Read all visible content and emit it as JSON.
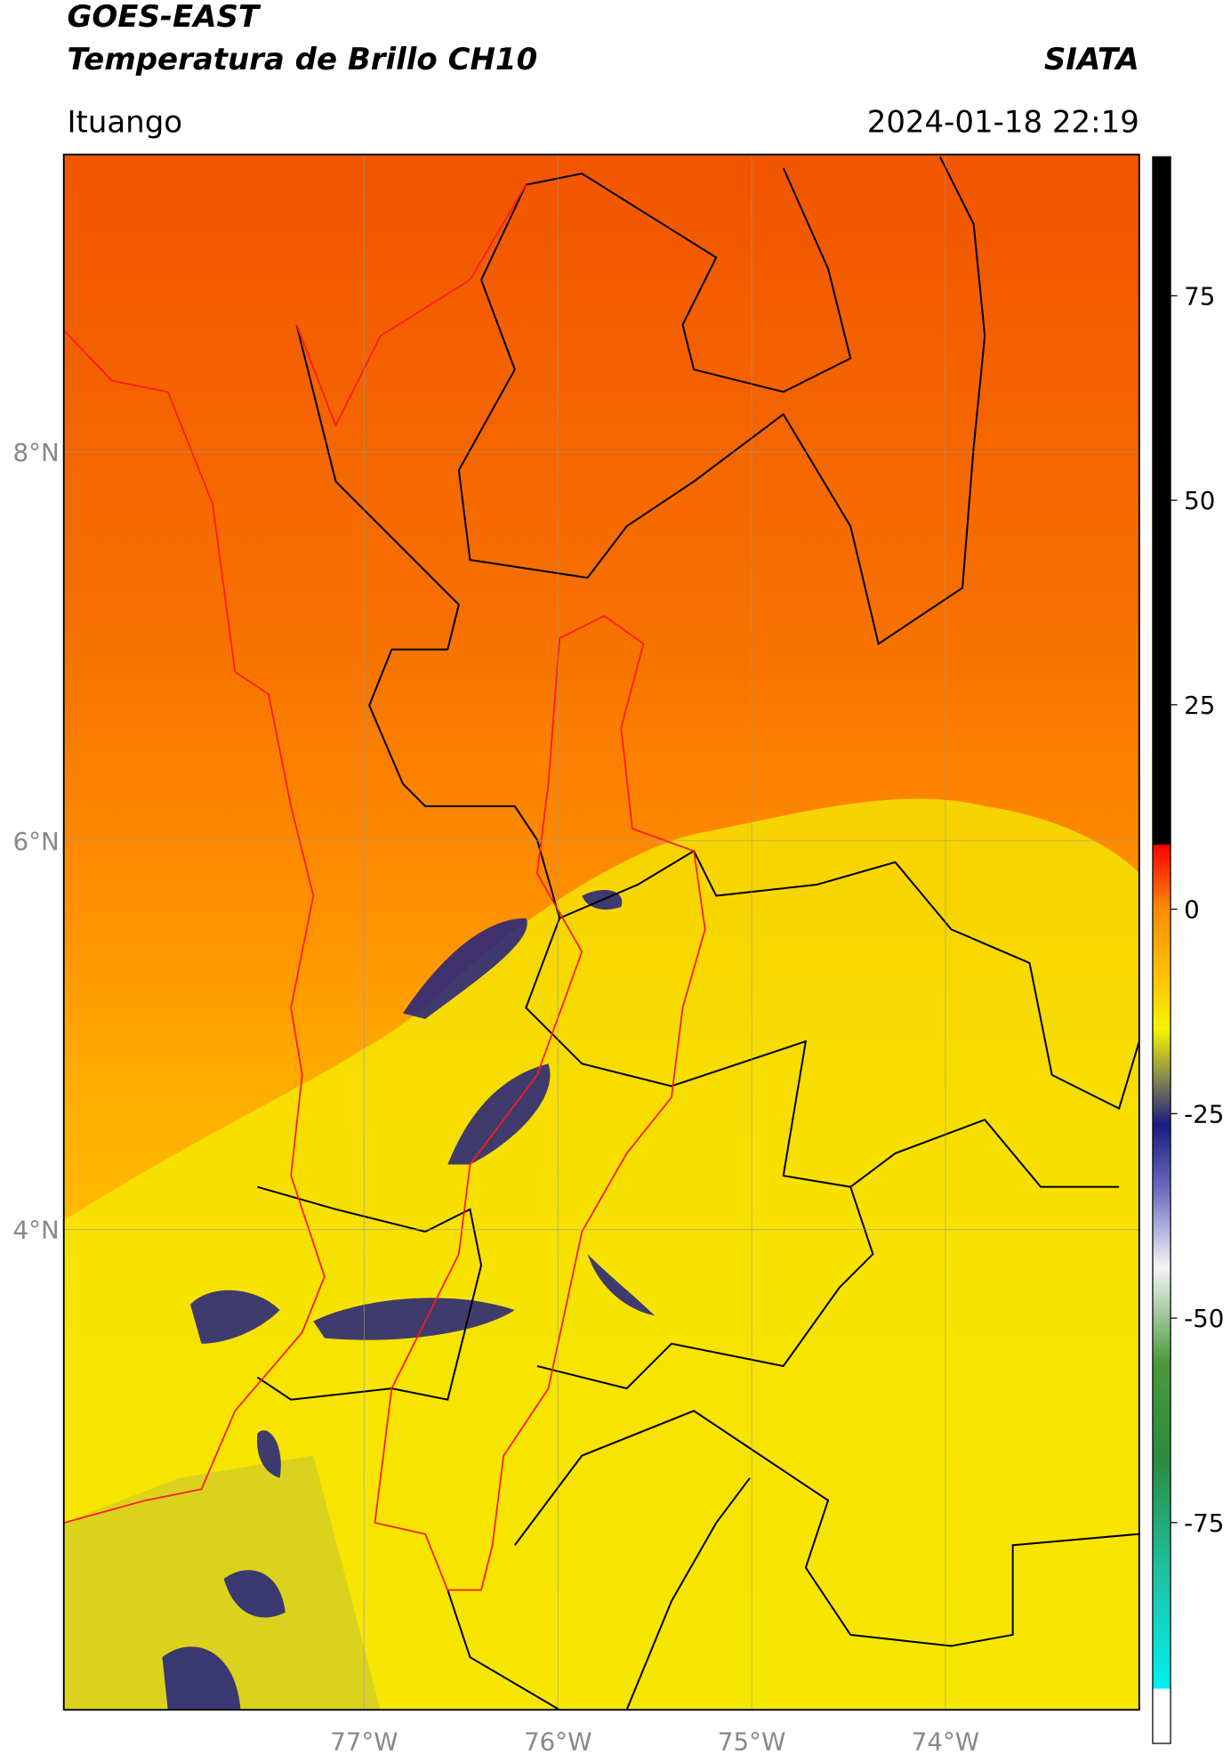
{
  "header": {
    "title": "GOES-EAST",
    "subtitle": "Temperatura de Brillo CH10",
    "source": "SIATA",
    "location": "Ituango",
    "datetime": "2024-01-18 22:19"
  },
  "map": {
    "xlim": [
      -78.55,
      -73.0
    ],
    "ylim": [
      1.53,
      9.53
    ],
    "xticks": [
      {
        "value": -77,
        "label": "77°W"
      },
      {
        "value": -76,
        "label": "76°W"
      },
      {
        "value": -75,
        "label": "75°W"
      },
      {
        "value": -74,
        "label": "74°W"
      }
    ],
    "yticks": [
      {
        "value": 4,
        "label": "4°N"
      },
      {
        "value": 6,
        "label": "6°N"
      },
      {
        "value": 8,
        "label": "8°N"
      }
    ],
    "grid": true
  },
  "colorbar": {
    "lim": [
      -102,
      92
    ],
    "ticks": [
      75,
      50,
      25,
      0,
      -25,
      -50,
      -75
    ]
  }
}
